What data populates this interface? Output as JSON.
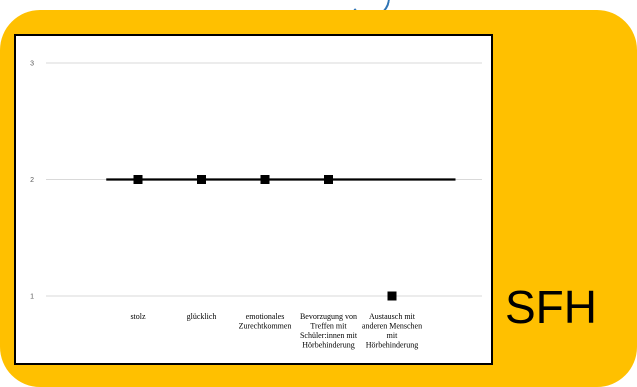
{
  "badge": {
    "text": "SFH"
  },
  "colors": {
    "panel": "#ffc000",
    "line": "#000000",
    "marker": "#000000",
    "grid": "#d9d9d9"
  },
  "chart_data": {
    "type": "line",
    "categories": [
      [
        "stolz"
      ],
      [
        "glücklich"
      ],
      [
        "emotionales",
        "Zurechtkommen"
      ],
      [
        "Bevorzugung von",
        "Treffen mit",
        "Schüler:innen mit",
        "Hörbehinderung"
      ],
      [
        "Austausch mit",
        "anderen Menschen",
        "mit",
        "Hörbehinderung"
      ]
    ],
    "series": [
      {
        "values": [
          2,
          2,
          2,
          2,
          null
        ],
        "line": true,
        "markers": true
      },
      {
        "values": [
          null,
          null,
          null,
          null,
          1
        ],
        "line": false,
        "markers": true
      }
    ],
    "line_span": [
      -0.5,
      5.0
    ],
    "yticks": [
      1,
      2,
      3
    ],
    "ylim": [
      1,
      3
    ],
    "grid": true,
    "title": "",
    "xlabel": "",
    "ylabel": ""
  }
}
